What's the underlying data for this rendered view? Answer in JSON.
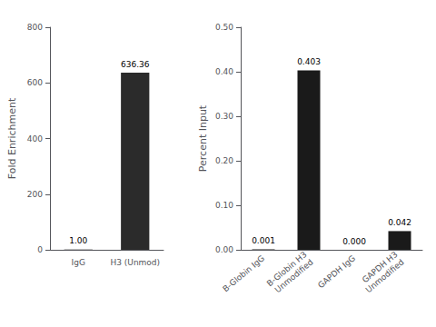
{
  "chart_data": [
    {
      "type": "bar",
      "categories": [
        "IgG",
        "H3 (Unmod)"
      ],
      "values": [
        1.0,
        636.36
      ],
      "value_labels": [
        "1.00",
        "636.36"
      ],
      "data_labels": true,
      "ylabel": "Fold Enrichment",
      "ylim": [
        0,
        800
      ],
      "yticks": [
        0,
        200,
        400,
        600,
        800
      ],
      "color": "#2b2b2b",
      "grid": false
    },
    {
      "type": "bar",
      "categories": [
        "B-Globin IgG",
        "B-Globin H3\nUnmodified",
        "GAPDH IgG",
        "GAPDH H3\nUnmodified"
      ],
      "values": [
        0.001,
        0.403,
        0.0,
        0.042
      ],
      "value_labels": [
        "0.001",
        "0.403",
        "0.000",
        "0.042"
      ],
      "data_labels": true,
      "ylabel": "Percent Input",
      "ylim": [
        0,
        0.5
      ],
      "yticks": [
        {
          "value": 0.0,
          "label": "0.00"
        },
        {
          "value": 0.1,
          "label": "0.10"
        },
        {
          "value": 0.2,
          "label": "0.20"
        },
        {
          "value": 0.3,
          "label": "0.30"
        },
        {
          "value": 0.4,
          "label": "0.40"
        },
        {
          "value": 0.5,
          "label": "0.50"
        }
      ],
      "color": "#1a1a1a",
      "grid": false
    }
  ]
}
